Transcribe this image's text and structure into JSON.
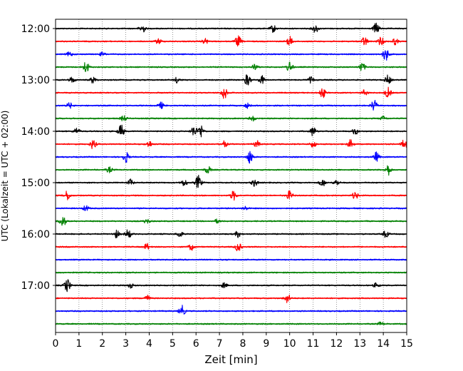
{
  "chart_data": {
    "type": "line",
    "title": "",
    "xlabel": "Zeit  [min]",
    "ylabel": "UTC (Lokalzeit = UTC + 02:00)",
    "xlim": [
      0,
      15
    ],
    "x_ticks": [
      0,
      1,
      2,
      3,
      4,
      5,
      6,
      7,
      8,
      9,
      10,
      11,
      12,
      13,
      14,
      15
    ],
    "y_ticks": [
      "12:00",
      "13:00",
      "14:00",
      "15:00",
      "16:00",
      "17:00"
    ],
    "grid": "vertical dotted",
    "trace_colors": [
      "#000000",
      "#ff0000",
      "#0000ff",
      "#008000"
    ],
    "series": [
      {
        "start": "12:00",
        "bursts": [
          [
            3.7,
            1.0
          ],
          [
            9.3,
            0.8
          ],
          [
            11.1,
            0.9
          ],
          [
            13.7,
            1.2
          ]
        ]
      },
      {
        "start": "12:15",
        "bursts": [
          [
            4.4,
            0.6
          ],
          [
            6.4,
            0.6
          ],
          [
            7.8,
            1.2
          ],
          [
            10.0,
            1.0
          ],
          [
            13.2,
            1.0
          ],
          [
            13.9,
            0.9
          ],
          [
            14.5,
            0.7
          ]
        ]
      },
      {
        "start": "12:30",
        "bursts": [
          [
            0.6,
            0.5
          ],
          [
            2.0,
            0.4
          ],
          [
            14.1,
            1.4
          ]
        ]
      },
      {
        "start": "12:45",
        "bursts": [
          [
            1.3,
            1.3
          ],
          [
            10.0,
            1.2
          ],
          [
            13.1,
            0.9
          ],
          [
            8.5,
            0.6
          ]
        ]
      },
      {
        "start": "13:00",
        "bursts": [
          [
            0.7,
            0.6
          ],
          [
            1.6,
            0.7
          ],
          [
            5.2,
            0.6
          ],
          [
            8.2,
            1.3
          ],
          [
            8.8,
            0.9
          ],
          [
            10.9,
            0.6
          ],
          [
            14.2,
            1.0
          ]
        ]
      },
      {
        "start": "13:15",
        "bursts": [
          [
            7.2,
            1.3
          ],
          [
            11.4,
            1.1
          ],
          [
            13.2,
            0.6
          ],
          [
            14.2,
            1.1
          ]
        ]
      },
      {
        "start": "13:30",
        "bursts": [
          [
            0.6,
            0.6
          ],
          [
            4.5,
            0.7
          ],
          [
            8.2,
            0.5
          ],
          [
            13.6,
            1.2
          ]
        ]
      },
      {
        "start": "13:45",
        "bursts": [
          [
            2.9,
            0.6
          ],
          [
            8.4,
            0.6
          ],
          [
            14.0,
            0.5
          ]
        ]
      },
      {
        "start": "14:00",
        "bursts": [
          [
            0.9,
            0.7
          ],
          [
            2.8,
            1.4
          ],
          [
            5.9,
            1.1
          ],
          [
            6.2,
            1.4
          ],
          [
            11.0,
            1.0
          ],
          [
            12.8,
            0.7
          ]
        ]
      },
      {
        "start": "14:15",
        "bursts": [
          [
            1.6,
            1.0
          ],
          [
            4.0,
            0.7
          ],
          [
            7.2,
            0.7
          ],
          [
            8.6,
            0.7
          ],
          [
            11.0,
            0.7
          ],
          [
            12.6,
            0.9
          ],
          [
            14.9,
            1.0
          ]
        ]
      },
      {
        "start": "14:30",
        "bursts": [
          [
            3.0,
            1.2
          ],
          [
            8.3,
            1.4
          ],
          [
            13.7,
            1.0
          ]
        ]
      },
      {
        "start": "14:45",
        "bursts": [
          [
            2.3,
            0.6
          ],
          [
            6.5,
            0.8
          ],
          [
            14.2,
            1.2
          ]
        ]
      },
      {
        "start": "15:00",
        "bursts": [
          [
            3.2,
            0.7
          ],
          [
            5.5,
            0.8
          ],
          [
            6.1,
            1.5
          ],
          [
            8.5,
            0.8
          ],
          [
            11.4,
            0.8
          ],
          [
            12.0,
            0.6
          ]
        ]
      },
      {
        "start": "15:15",
        "bursts": [
          [
            0.5,
            1.0
          ],
          [
            7.6,
            1.0
          ],
          [
            10.0,
            1.0
          ],
          [
            12.8,
            0.8
          ]
        ]
      },
      {
        "start": "15:30",
        "bursts": [
          [
            1.3,
            0.6
          ],
          [
            8.1,
            0.4
          ]
        ]
      },
      {
        "start": "15:45",
        "bursts": [
          [
            0.3,
            1.3
          ],
          [
            3.9,
            0.5
          ],
          [
            6.9,
            0.4
          ]
        ]
      },
      {
        "start": "16:00",
        "bursts": [
          [
            2.6,
            0.8
          ],
          [
            3.1,
            1.0
          ],
          [
            5.3,
            0.7
          ],
          [
            7.8,
            0.7
          ],
          [
            14.1,
            0.7
          ]
        ]
      },
      {
        "start": "16:15",
        "bursts": [
          [
            3.9,
            0.7
          ],
          [
            5.8,
            0.7
          ],
          [
            7.8,
            1.0
          ]
        ]
      },
      {
        "start": "16:30",
        "bursts": []
      },
      {
        "start": "16:45",
        "bursts": []
      },
      {
        "start": "17:00",
        "bursts": [
          [
            0.5,
            1.4
          ],
          [
            3.2,
            0.5
          ],
          [
            7.2,
            0.5
          ],
          [
            13.7,
            0.5
          ]
        ]
      },
      {
        "start": "17:15",
        "bursts": [
          [
            3.9,
            0.7
          ],
          [
            9.9,
            1.0
          ]
        ]
      },
      {
        "start": "17:30",
        "bursts": [
          [
            5.4,
            1.2
          ]
        ]
      },
      {
        "start": "17:45",
        "bursts": [
          [
            13.9,
            0.4
          ]
        ]
      }
    ]
  }
}
